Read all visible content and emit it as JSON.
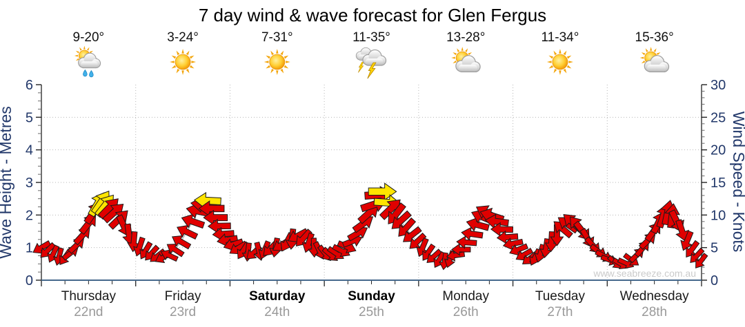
{
  "title": "7 day wind & wave forecast for Glen Fergus",
  "watermark": "www.seabreeze.com.au",
  "y_left": {
    "label": "Wave Height - Metres",
    "min": 0,
    "max": 6,
    "major": 1,
    "minor": 0.25
  },
  "y_right": {
    "label": "Wind Speed - Knots",
    "min": 0,
    "max": 30,
    "major": 5,
    "minor": 1
  },
  "days": [
    {
      "name": "Thursday",
      "date": "22nd",
      "temp": "9-20°",
      "icon": "shower",
      "bold": false
    },
    {
      "name": "Friday",
      "date": "23rd",
      "temp": "3-24°",
      "icon": "sunny",
      "bold": false
    },
    {
      "name": "Saturday",
      "date": "24th",
      "temp": "7-31°",
      "icon": "sunny",
      "bold": true
    },
    {
      "name": "Sunday",
      "date": "25th",
      "temp": "11-35°",
      "icon": "storm",
      "bold": true
    },
    {
      "name": "Monday",
      "date": "26th",
      "temp": "13-28°",
      "icon": "partly",
      "bold": false
    },
    {
      "name": "Tuesday",
      "date": "27th",
      "temp": "11-34°",
      "icon": "sunny",
      "bold": false
    },
    {
      "name": "Wednesday",
      "date": "28th",
      "temp": "15-36°",
      "icon": "partly",
      "bold": false
    }
  ],
  "colors": {
    "arrow_red": "#e00000",
    "arrow_yellow": "#ffe400",
    "arrow_outline": "#1a1a1a",
    "axis_text": "#22386a",
    "axis_line": "#222222",
    "bottom_axis_line": "#44688c",
    "grid": "#b5b5b5",
    "connector": "#a6a6a6",
    "day_name": "#1a1a1a",
    "date_gray": "#999999",
    "temp_text": "#111111",
    "watermark": "#cbcbcb",
    "title_text": "#000000"
  },
  "chart_data": {
    "type": "line",
    "title": "7 day wind & wave forecast for Glen Fergus",
    "x_axis": {
      "unit": "hours",
      "range": [
        0,
        168
      ],
      "major_tick_h": 24,
      "minor_tick_h": 6,
      "categories": [
        "Thursday 22nd",
        "Friday 23rd",
        "Saturday 24th",
        "Sunday 25th",
        "Monday 26th",
        "Tuesday 27th",
        "Wednesday 28th"
      ]
    },
    "y_left_axis": {
      "label": "Wave Height - Metres",
      "range": [
        0,
        6
      ],
      "gridlines_at": [
        1,
        2,
        3,
        4,
        5
      ]
    },
    "y_right_axis": {
      "label": "Wind Speed - Knots",
      "range": [
        0,
        30
      ],
      "gridlines_at": [
        5,
        10,
        15,
        20,
        25
      ]
    },
    "grid": "dotted gray, horizontal at each metre, vertical at each day boundary",
    "series": [
      {
        "name": "wind",
        "style": "direction-arrows",
        "columns": [
          "hour",
          "knots",
          "arrow_direction_deg_screen",
          "color(y=yellow else red)"
        ],
        "points": [
          [
            0,
            5.0,
            150
          ],
          [
            1.5,
            4.5,
            135
          ],
          [
            3,
            4.0,
            115
          ],
          [
            4.5,
            3.6,
            105
          ],
          [
            6,
            3.5,
            125
          ],
          [
            7.5,
            4.2,
            322
          ],
          [
            9,
            5.4,
            316
          ],
          [
            10.5,
            6.9,
            312
          ],
          [
            12,
            8.7,
            308
          ],
          [
            13.3,
            10.4,
            304
          ],
          [
            14.3,
            11.7,
            300,
            "y"
          ],
          [
            15.3,
            12.0,
            304,
            "y"
          ],
          [
            16.3,
            11.5,
            308,
            "y"
          ],
          [
            17.3,
            11.1,
            314
          ],
          [
            18.5,
            10.4,
            318
          ],
          [
            19.8,
            9.4,
            316
          ],
          [
            21,
            8.3,
            65
          ],
          [
            22.3,
            7.0,
            82
          ],
          [
            23.5,
            5.9,
            95
          ],
          [
            25,
            5.1,
            108
          ],
          [
            26.5,
            4.5,
            120
          ],
          [
            28,
            4.1,
            132
          ],
          [
            29.5,
            3.7,
            142
          ],
          [
            31,
            3.5,
            152
          ],
          [
            32.5,
            3.8,
            205
          ],
          [
            34,
            4.7,
            213
          ],
          [
            35.5,
            5.9,
            210
          ],
          [
            37,
            7.4,
            206
          ],
          [
            38.5,
            9.0,
            199
          ],
          [
            40,
            10.6,
            192
          ],
          [
            41.3,
            11.6,
            187
          ],
          [
            42.3,
            12.2,
            183,
            "y"
          ],
          [
            43.3,
            11.0,
            180
          ],
          [
            44.3,
            9.6,
            180
          ],
          [
            45.3,
            8.3,
            179
          ],
          [
            46.3,
            7.1,
            176
          ],
          [
            47.3,
            6.2,
            170
          ],
          [
            48.8,
            5.5,
            162
          ],
          [
            50,
            4.9,
            148
          ],
          [
            51.3,
            4.5,
            122
          ],
          [
            52.6,
            4.3,
            96
          ],
          [
            54,
            4.2,
            138
          ],
          [
            55.4,
            4.4,
            76
          ],
          [
            56.8,
            4.6,
            112
          ],
          [
            58.2,
            4.8,
            134
          ],
          [
            59.6,
            5.0,
            100
          ],
          [
            61,
            5.4,
            148
          ],
          [
            62.4,
            5.8,
            118
          ],
          [
            63.8,
            6.3,
            96
          ],
          [
            65.2,
            6.8,
            152
          ],
          [
            66.6,
            6.4,
            132
          ],
          [
            68,
            5.7,
            108
          ],
          [
            69.4,
            5.0,
            88
          ],
          [
            70.8,
            4.5,
            64
          ],
          [
            72.2,
            4.1,
            52
          ],
          [
            73.6,
            3.9,
            40
          ],
          [
            75,
            4.1,
            34
          ],
          [
            76.4,
            4.5,
            28
          ],
          [
            77.8,
            5.1,
            24
          ],
          [
            79.2,
            6.0,
            338
          ],
          [
            80.6,
            7.2,
            330
          ],
          [
            82,
            8.7,
            324
          ],
          [
            83.4,
            10.3,
            318
          ],
          [
            84.6,
            11.6,
            342
          ],
          [
            85.8,
            13.1,
            356
          ],
          [
            86.8,
            13.6,
            0,
            "y"
          ],
          [
            88,
            11.9,
            4,
            "y"
          ],
          [
            89,
            11.0,
            316
          ],
          [
            90.2,
            10.1,
            128
          ],
          [
            91.4,
            9.1,
            138
          ],
          [
            92.8,
            8.0,
            132
          ],
          [
            94.2,
            6.9,
            142
          ],
          [
            95.6,
            5.9,
            137
          ],
          [
            97,
            5.0,
            112
          ],
          [
            98.4,
            4.2,
            124
          ],
          [
            99.8,
            3.6,
            138
          ],
          [
            101.2,
            3.1,
            120
          ],
          [
            102.6,
            2.9,
            98
          ],
          [
            104,
            3.2,
            108
          ],
          [
            105.4,
            3.8,
            172
          ],
          [
            106.8,
            4.7,
            180
          ],
          [
            108.2,
            5.8,
            184
          ],
          [
            109.6,
            7.1,
            188
          ],
          [
            111,
            8.5,
            195
          ],
          [
            112.3,
            9.7,
            203
          ],
          [
            113.4,
            10.3,
            210
          ],
          [
            114.6,
            9.9,
            198
          ],
          [
            115.9,
            9.0,
            187
          ],
          [
            117.2,
            7.8,
            181
          ],
          [
            118.6,
            6.6,
            176
          ],
          [
            120,
            5.6,
            168
          ],
          [
            121.4,
            4.7,
            158
          ],
          [
            122.8,
            3.9,
            150
          ],
          [
            124.2,
            3.3,
            142
          ],
          [
            125.6,
            3.5,
            116
          ],
          [
            127,
            4.1,
            106
          ],
          [
            128.4,
            4.9,
            98
          ],
          [
            129.8,
            5.9,
            93
          ],
          [
            131.2,
            6.9,
            90
          ],
          [
            132.6,
            7.9,
            220
          ],
          [
            133.9,
            8.6,
            215
          ],
          [
            135.1,
            8.9,
            222
          ],
          [
            136.4,
            8.4,
            230
          ],
          [
            137.7,
            7.5,
            52
          ],
          [
            139,
            6.4,
            60
          ],
          [
            140.4,
            5.3,
            48
          ],
          [
            141.8,
            4.4,
            36
          ],
          [
            143.2,
            3.7,
            28
          ],
          [
            144.6,
            3.1,
            20
          ],
          [
            146,
            2.7,
            42
          ],
          [
            147.4,
            2.5,
            30
          ],
          [
            148.8,
            2.6,
            24
          ],
          [
            150.2,
            3.1,
            36
          ],
          [
            151.6,
            3.9,
            316
          ],
          [
            153,
            4.9,
            310
          ],
          [
            154.4,
            6.1,
            315
          ],
          [
            155.8,
            7.5,
            306
          ],
          [
            157.1,
            8.9,
            296
          ],
          [
            158.3,
            9.9,
            288
          ],
          [
            159.4,
            10.4,
            282
          ],
          [
            160.5,
            9.9,
            277
          ],
          [
            161.7,
            9.0,
            64
          ],
          [
            163,
            7.6,
            72
          ],
          [
            164.3,
            6.0,
            112
          ],
          [
            165.5,
            4.7,
            126
          ],
          [
            166.7,
            3.7,
            133
          ],
          [
            167.8,
            2.9,
            127
          ]
        ]
      },
      {
        "name": "wave-height",
        "style": "flat-line",
        "value_m": 0,
        "note": "wave height line sits flat at 0 m along the bottom axis"
      }
    ]
  }
}
